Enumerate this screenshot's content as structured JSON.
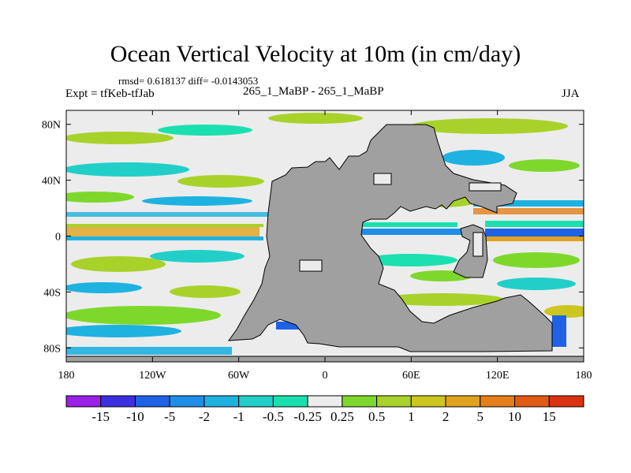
{
  "title": "Ocean Vertical Velocity at 10m (in cm/day)",
  "stats_text": "rmsd= 0.618137 diff= -0.0143053",
  "left_label": "Expt = tfKeb-tfJab",
  "center_label": "265_1_MaBP - 265_1_MaBP",
  "right_label": "JJA",
  "map": {
    "projection": "cylindrical equidistant",
    "lon_range": [
      -180,
      180
    ],
    "lat_range": [
      -90,
      90
    ],
    "land_color": "#a0a0a0",
    "x_ticks": [
      {
        "lon": -180,
        "label": "180"
      },
      {
        "lon": -120,
        "label": "120W"
      },
      {
        "lon": -60,
        "label": "60W"
      },
      {
        "lon": 0,
        "label": "0"
      },
      {
        "lon": 60,
        "label": "60E"
      },
      {
        "lon": 120,
        "label": "120E"
      },
      {
        "lon": 180,
        "label": "180"
      }
    ],
    "y_ticks": [
      {
        "lat": 80,
        "label": "80N"
      },
      {
        "lat": 40,
        "label": "40N"
      },
      {
        "lat": 0,
        "label": "0"
      },
      {
        "lat": -40,
        "label": "40S"
      },
      {
        "lat": -80,
        "label": "80S"
      }
    ]
  },
  "colorbar": {
    "colors": [
      "#9b20e8",
      "#3b2fe0",
      "#1f62e6",
      "#1f8ee8",
      "#1eb2e0",
      "#22cfc8",
      "#1ae0b0",
      "#ececec",
      "#7ed82c",
      "#a8d22a",
      "#cdc520",
      "#e0a21e",
      "#e57f1a",
      "#e25a16",
      "#db3211"
    ],
    "labels": [
      "-15",
      "-10",
      "-5",
      "-2",
      "-1",
      "-0.5",
      "-0.25",
      "0.25",
      "0.5",
      "1",
      "2",
      "5",
      "10",
      "15"
    ]
  }
}
